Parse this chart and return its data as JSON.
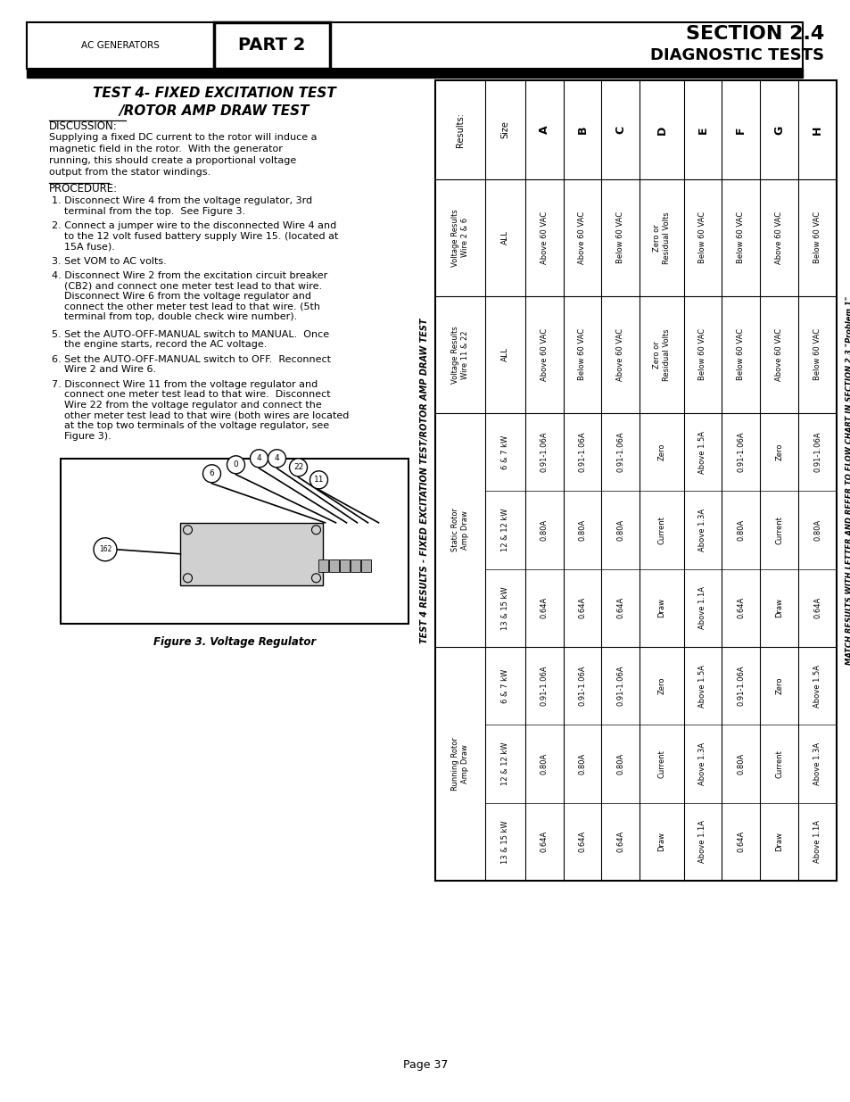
{
  "title_section": "SECTION 2.4",
  "title_diag": "DIAGNOSTIC TESTS",
  "header_left": "AC GENERATORS",
  "header_part": "PART 2",
  "test_title_line1": "TEST 4- FIXED EXCITATION TEST",
  "test_title_line2": "/ROTOR AMP DRAW TEST",
  "discussion_header": "DISCUSSION:",
  "discussion_text_lines": [
    "Supplying a fixed DC current to the rotor will induce a",
    "magnetic field in the rotor.  With the generator",
    "running, this should create a proportional voltage",
    "output from the stator windings."
  ],
  "procedure_header": "PROCEDURE:",
  "procedure_steps": [
    [
      "1. ",
      "Disconnect Wire 4 from the voltage regulator, 3rd\n    terminal from the top.  See Figure 3."
    ],
    [
      "2. ",
      "Connect a jumper wire to the disconnected Wire 4 and\n    to the 12 volt fused battery supply Wire 15. (located at\n    15A fuse)."
    ],
    [
      "3. ",
      "Set VOM to AC volts."
    ],
    [
      "4. ",
      "Disconnect Wire 2 from the excitation circuit breaker\n    (CB2) and connect one meter test lead to that wire.\n    Disconnect Wire 6 from the voltage regulator and\n    connect the other meter test lead to that wire. (5th\n    terminal from top, double check wire number)."
    ],
    [
      "5. ",
      "Set the AUTO-OFF-MANUAL switch to MANUAL.  Once\n    the engine starts, record the AC voltage."
    ],
    [
      "6. ",
      "Set the AUTO-OFF-MANUAL switch to OFF.  Reconnect\n    Wire 2 and Wire 6."
    ],
    [
      "7. ",
      "Disconnect Wire 11 from the voltage regulator and\n    connect one meter test lead to that wire.  Disconnect\n    Wire 22 from the voltage regulator and connect the\n    other meter test lead to that wire (both wires are located\n    at the top two terminals of the voltage regulator, see\n    Figure 3)."
    ]
  ],
  "figure_caption": "Figure 3. Voltage Regulator",
  "table_title": "TEST 4 RESULTS - FIXED EXCITATION TEST/ROTOR AMP DRAW TEST",
  "table_note": "MATCH RESULTS WITH LETTER AND REFER TO FLOW CHART IN SECTION 2.3 \"Problem 1\"",
  "col_headers": [
    "Results:",
    "Size",
    "A",
    "B",
    "C",
    "D",
    "E",
    "F",
    "G",
    "H"
  ],
  "row_labels": [
    "Voltage Results\nWire 2 & 6",
    "Voltage Results\nWire 11 & 22",
    "Static Rotor\nAmp Draw",
    "Running Rotor\nAmp Draw"
  ],
  "size_labels": [
    [
      "ALL"
    ],
    [
      "ALL"
    ],
    [
      "6 & 7 kW",
      "12 & 12 kW",
      "13 & 15 kW"
    ],
    [
      "6 & 7 kW",
      "12 & 12 kW",
      "13 & 15 kW"
    ]
  ],
  "table_data": [
    [
      "Above 60 VAC",
      "Above 60 VAC",
      "Below 60 VAC",
      "Zero or\nResidual Volts",
      "Below 60 VAC",
      "Below 60 VAC",
      "Above 60 VAC",
      "Below 60 VAC"
    ],
    [
      "Above 60 VAC",
      "Below 60 VAC",
      "Above 60 VAC",
      "Zero or\nResidual Volts",
      "Below 60 VAC",
      "Below 60 VAC",
      "Above 60 VAC",
      "Below 60 VAC"
    ],
    [
      "0.91-1.06A\n0.80A\n0.64A",
      "0.91-1.06A\n0.80A\n0.64A",
      "0.91-1.06A\n0.80A\n0.64A",
      "Zero\nCurrent\nDraw",
      "Above 1.5A\nAbove 1.3A\nAbove 1.1A",
      "0.91-1.06A\n0.80A\n0.64A",
      "Zero\nCurrent\nDraw",
      "0.91-1.06A\n0.80A\n0.64A"
    ],
    [
      "0.91-1.06A\n0.80A\n0.64A",
      "0.91-1.06A\n0.80A\n0.64A",
      "0.91-1.06A\n0.80A\n0.64A",
      "Zero\nCurrent\nDraw",
      "Above 1.5A\nAbove 1.3A\nAbove 1.1A",
      "0.91-1.06A\n0.80A\n0.64A",
      "Zero\nCurrent\nDraw",
      "Above 1.5A\nAbove 1.3A\nAbove 1.1A"
    ]
  ],
  "page_number": "Page 37"
}
